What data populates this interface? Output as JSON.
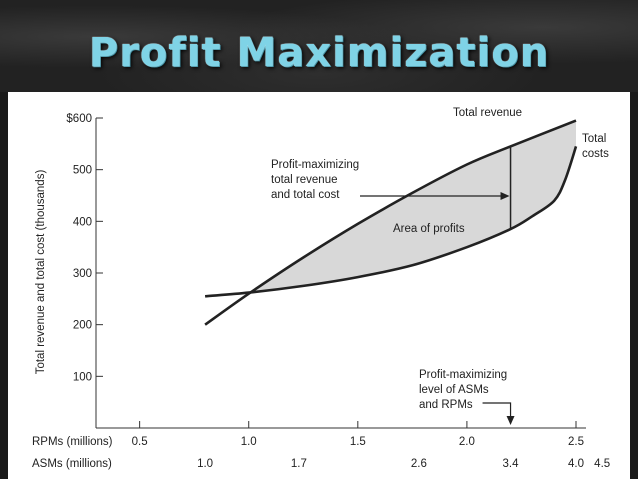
{
  "slide_title": "Profit Maximization",
  "chart_data": {
    "type": "area",
    "ylabel": "Total revenue and total cost (thousands)",
    "y_ticks": [
      "$600",
      "500",
      "400",
      "300",
      "200",
      "100"
    ],
    "y_tick_values": [
      600,
      500,
      400,
      300,
      200,
      100
    ],
    "ylim": [
      0,
      600
    ],
    "x_axes": [
      {
        "label": "RPMs (millions)",
        "ticks": [
          "0.5",
          "1.0",
          "1.5",
          "2.0",
          "2.5"
        ],
        "values": [
          0.5,
          1.0,
          1.5,
          2.0,
          2.5
        ]
      },
      {
        "label": "ASMs (millions)",
        "ticks": [
          "1.0",
          "1.7",
          "2.6",
          "3.4",
          "4.0",
          "4.5"
        ],
        "values": [
          0.8,
          1.23,
          1.78,
          2.2,
          2.5,
          2.62
        ]
      }
    ],
    "xlim": [
      0,
      2.7
    ],
    "series": [
      {
        "name": "Total revenue",
        "x": [
          0.8,
          1.0,
          1.25,
          1.5,
          1.75,
          2.0,
          2.2,
          2.5
        ],
        "y": [
          200,
          260,
          330,
          395,
          455,
          510,
          545,
          595
        ]
      },
      {
        "name": "Total costs",
        "x": [
          0.8,
          1.0,
          1.25,
          1.5,
          1.75,
          2.0,
          2.2,
          2.3,
          2.4,
          2.45,
          2.5
        ],
        "y": [
          255,
          262,
          275,
          292,
          315,
          350,
          385,
          410,
          440,
          480,
          545
        ]
      }
    ],
    "profit_max_x": 2.2,
    "annotations": {
      "profit_max_revenue_cost": [
        "Profit-maximizing",
        "total revenue",
        "and total cost"
      ],
      "area_of_profits": "Area of profits",
      "profit_max_level": [
        "Profit-maximizing",
        "level of ASMs",
        "and RPMs"
      ]
    },
    "colors": {
      "area_fill": "#d8d8d8",
      "line": "#222222"
    }
  }
}
